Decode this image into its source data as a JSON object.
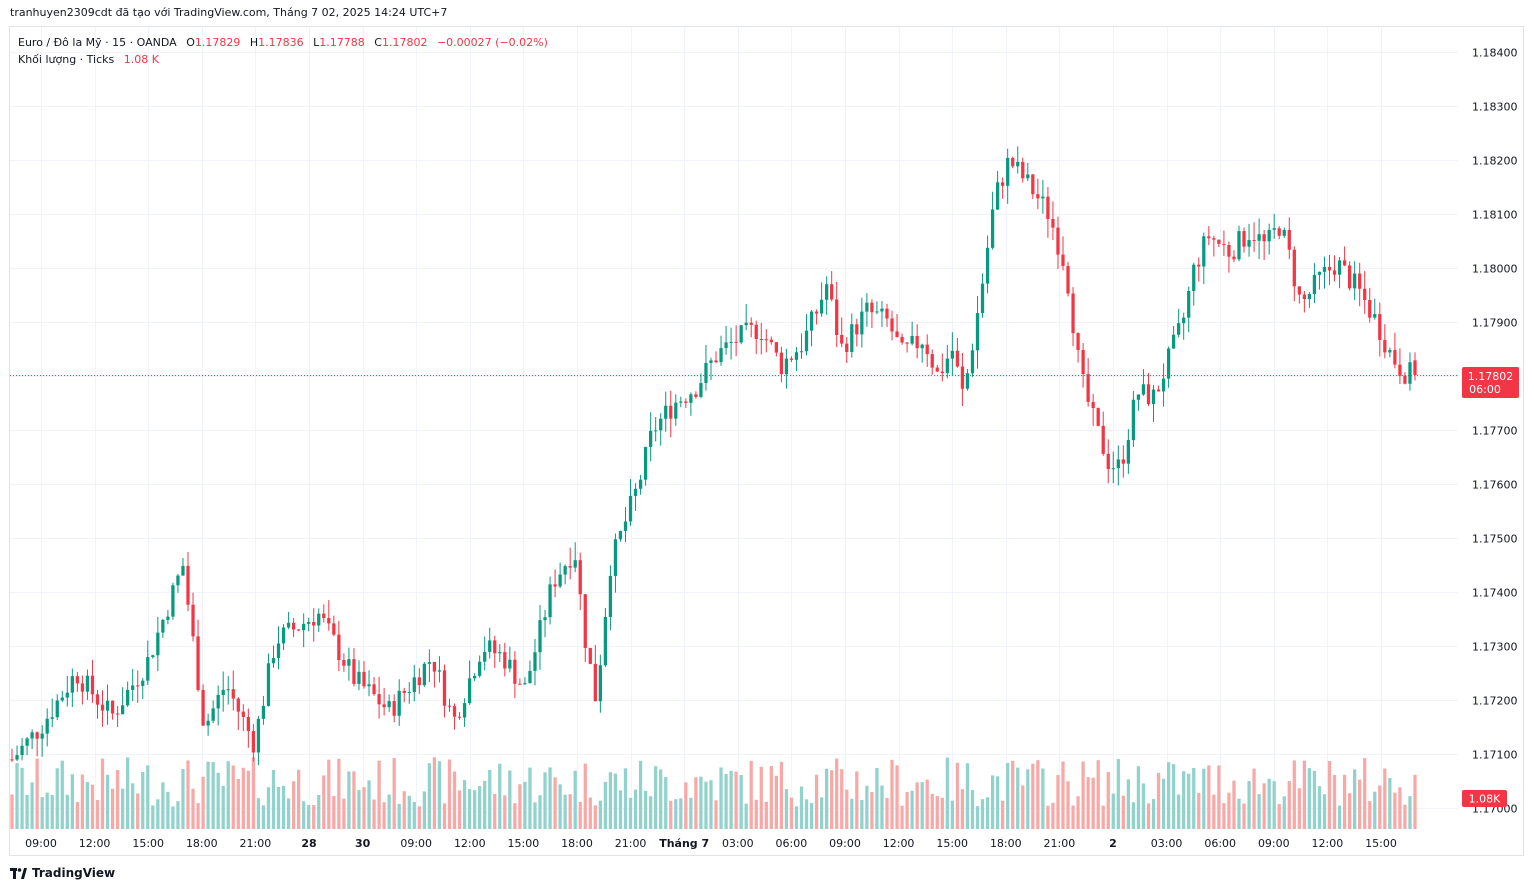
{
  "header": {
    "text": "tranhuyen2309cdt đã tạo với TradingView.com, Tháng 7 02, 2025 14:24 UTC+7"
  },
  "legend": {
    "symbol": "Euro / Đô la Mỹ · 15 · OANDA",
    "o_label": "O",
    "o_value": "1.17829",
    "h_label": "H",
    "h_value": "1.17836",
    "l_label": "L",
    "l_value": "1.17788",
    "c_label": "C",
    "c_value": "1.17802",
    "change": "−0.00027 (−0.02%)",
    "volume_label": "Khối lượng · Ticks",
    "volume_value": "1.08 K"
  },
  "price_badge": {
    "price": "1.17802",
    "countdown": "06:00"
  },
  "volume_badge": {
    "value": "1.08K"
  },
  "footer": {
    "brand": "TradingView"
  },
  "colors": {
    "up": "#089981",
    "down": "#f23645",
    "up_volume": "#92d2cc",
    "down_volume": "#f7a9a7",
    "grid": "#f0f3fa"
  },
  "chart_data": {
    "type": "candlestick",
    "interval": "15",
    "y_axis_ticks": [
      "1.18400",
      "1.18300",
      "1.18200",
      "1.18100",
      "1.18000",
      "1.17900",
      "1.17800",
      "1.17700",
      "1.17600",
      "1.17500",
      "1.17400",
      "1.17300",
      "1.17200",
      "1.17100",
      "1.17000"
    ],
    "y_axis_values": [
      1.184,
      1.183,
      1.182,
      1.181,
      1.18,
      1.179,
      1.178,
      1.177,
      1.176,
      1.175,
      1.174,
      1.173,
      1.172,
      1.171,
      1.17
    ],
    "ylim": [
      1.16965,
      1.1845
    ],
    "last_price": 1.17802,
    "x_axis_ticks": [
      "09:00",
      "12:00",
      "15:00",
      "18:00",
      "21:00",
      "28",
      "30",
      "09:00",
      "12:00",
      "15:00",
      "18:00",
      "21:00",
      "Tháng 7",
      "03:00",
      "06:00",
      "09:00",
      "12:00",
      "15:00",
      "18:00",
      "21:00",
      "2",
      "03:00",
      "06:00",
      "09:00",
      "12:00",
      "15:00"
    ],
    "anchors": [
      [
        0,
        1.1709
      ],
      [
        20,
        1.1715
      ],
      [
        45,
        1.1725
      ],
      [
        70,
        1.1717
      ],
      [
        95,
        1.1727
      ],
      [
        120,
        1.1745
      ],
      [
        135,
        1.1715
      ],
      [
        150,
        1.1723
      ],
      [
        170,
        1.1712
      ],
      [
        185,
        1.1731
      ],
      [
        215,
        1.1736
      ],
      [
        240,
        1.1724
      ],
      [
        265,
        1.1718
      ],
      [
        295,
        1.1728
      ],
      [
        310,
        1.1716
      ],
      [
        330,
        1.173
      ],
      [
        345,
        1.1728
      ],
      [
        360,
        1.1722
      ],
      [
        380,
        1.1742
      ],
      [
        395,
        1.1748
      ],
      [
        402,
        1.1732
      ],
      [
        410,
        1.172
      ],
      [
        420,
        1.1745
      ],
      [
        440,
        1.176
      ],
      [
        450,
        1.177
      ],
      [
        465,
        1.1775
      ],
      [
        480,
        1.1778
      ],
      [
        495,
        1.1784
      ],
      [
        510,
        1.1787
      ],
      [
        525,
        1.1789
      ],
      [
        540,
        1.1782
      ],
      [
        555,
        1.1786
      ],
      [
        565,
        1.1792
      ],
      [
        572,
        1.1797
      ],
      [
        582,
        1.1785
      ],
      [
        600,
        1.1792
      ],
      [
        615,
        1.179
      ],
      [
        625,
        1.1784
      ],
      [
        640,
        1.1787
      ],
      [
        650,
        1.178
      ],
      [
        660,
        1.1785
      ],
      [
        668,
        1.1776
      ],
      [
        680,
        1.1795
      ],
      [
        690,
        1.1813
      ],
      [
        700,
        1.182
      ],
      [
        715,
        1.1815
      ],
      [
        728,
        1.181
      ],
      [
        740,
        1.18
      ],
      [
        750,
        1.178
      ],
      [
        760,
        1.1771
      ],
      [
        770,
        1.1764
      ],
      [
        778,
        1.1763
      ],
      [
        790,
        1.1777
      ],
      [
        802,
        1.1776
      ],
      [
        812,
        1.1783
      ],
      [
        822,
        1.179
      ],
      [
        830,
        1.18
      ],
      [
        840,
        1.1806
      ],
      [
        855,
        1.1803
      ],
      [
        870,
        1.1807
      ],
      [
        880,
        1.1804
      ],
      [
        890,
        1.1808
      ],
      [
        896,
        1.1803
      ],
      [
        905,
        1.1793
      ],
      [
        918,
        1.1798
      ],
      [
        930,
        1.1801
      ],
      [
        945,
        1.1796
      ],
      [
        958,
        1.179
      ],
      [
        968,
        1.1784
      ],
      [
        976,
        1.1781
      ],
      [
        985,
        1.178
      ]
    ],
    "candle_count": 280,
    "volume_series": {
      "name": "Khối lượng · Ticks",
      "last": "1.08 K"
    }
  }
}
